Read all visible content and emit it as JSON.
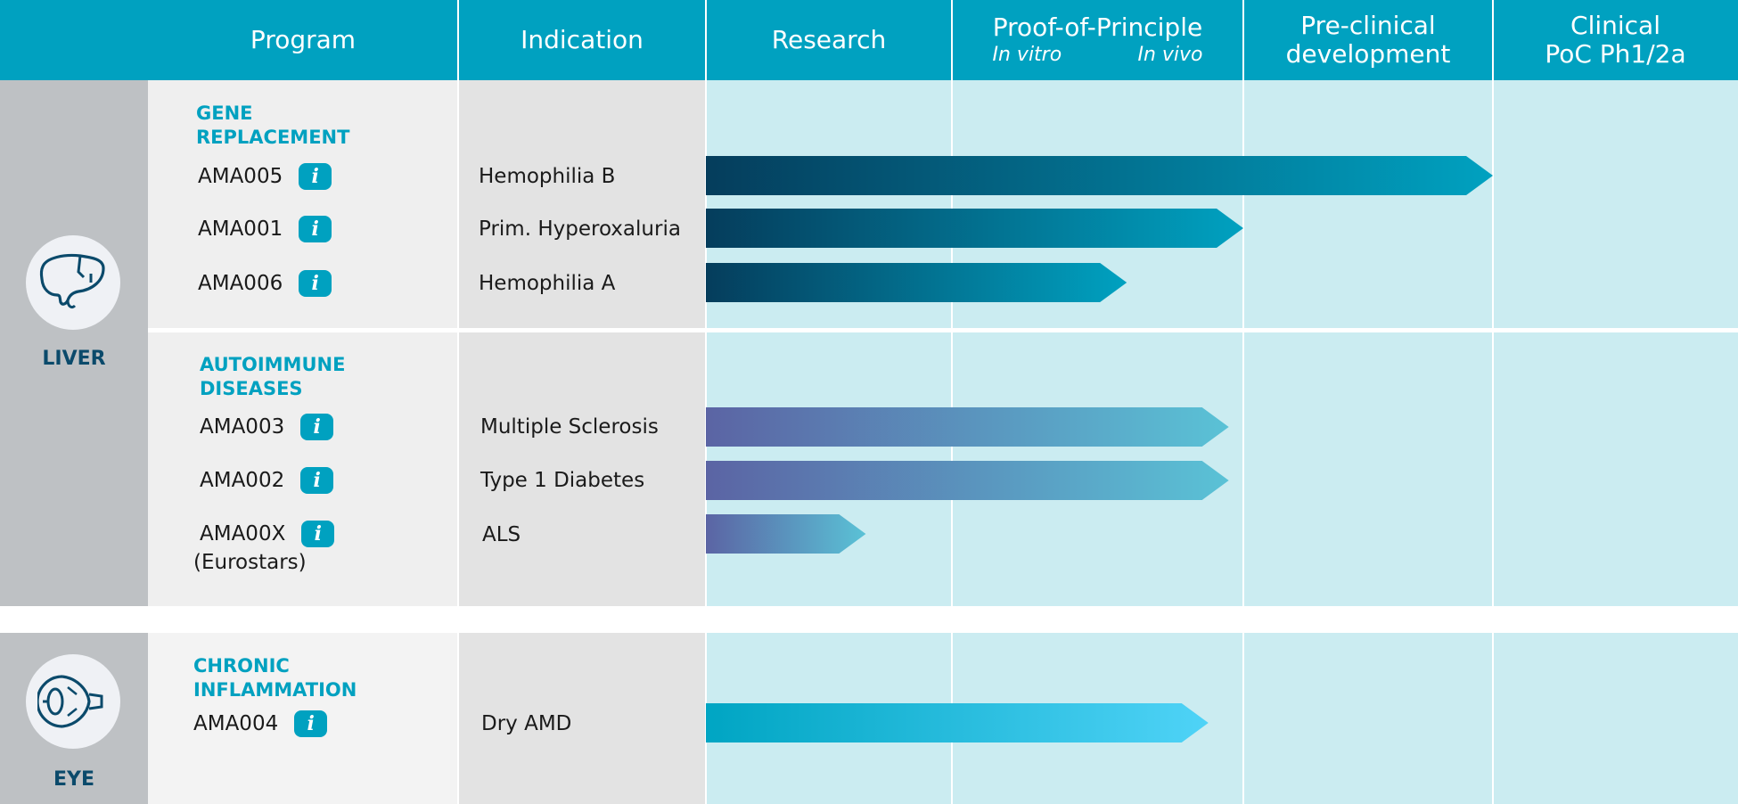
{
  "chart_data": {
    "type": "bar",
    "orientation": "horizontal",
    "chart_kind": "development pipeline",
    "columns": {
      "program": "Program",
      "indication": "Indication",
      "research": "Research",
      "poc": "Proof-of-Principle",
      "poc_sub_a": "In vitro",
      "poc_sub_b": "In vivo",
      "preclinical": [
        "Pre-clinical",
        "development"
      ],
      "clinical": [
        "Clinical",
        "PoC Ph1/2a"
      ]
    },
    "stages": [
      "Research",
      "Proof-of-Principle",
      "Pre-clinical development",
      "Clinical PoC Ph1/2a"
    ],
    "x_units": "stages completed",
    "xlim": [
      0,
      4
    ],
    "organs": {
      "liver": {
        "label": "LIVER",
        "icon": "liver-icon"
      },
      "eye": {
        "label": "EYE",
        "icon": "eye-icon"
      }
    },
    "groups": [
      {
        "category": [
          "GENE",
          "REPLACEMENT"
        ],
        "programs": [
          {
            "name": "AMA005",
            "note": "",
            "indication": "Hemophilia B",
            "progress": 3.0
          },
          {
            "name": "AMA001",
            "note": "",
            "indication": "Prim. Hyperoxaluria",
            "progress": 2.0
          },
          {
            "name": "AMA006",
            "note": "",
            "indication": "Hemophilia A",
            "progress": 1.6
          }
        ]
      },
      {
        "category": [
          "AUTOIMMUNE",
          "DISEASES"
        ],
        "programs": [
          {
            "name": "AMA003",
            "note": "",
            "indication": "Multiple Sclerosis",
            "progress": 1.95
          },
          {
            "name": "AMA002",
            "note": "",
            "indication": "Type 1 Diabetes",
            "progress": 1.95
          },
          {
            "name": "AMA00X",
            "note": "(Eurostars)",
            "indication": "ALS",
            "progress": 0.65
          }
        ]
      },
      {
        "category": [
          "CHRONIC",
          "INFLAMMATION"
        ],
        "programs": [
          {
            "name": "AMA004",
            "note": "",
            "indication": "Dry AMD",
            "progress": 1.88
          }
        ]
      }
    ],
    "info_glyph": "i",
    "colors": {
      "header": "#00a1c0",
      "gene_replacement_gradient": [
        "#053d5c",
        "#00a1c0"
      ],
      "autoimmune_gradient": [
        "#5b64a4",
        "#5ac2d6"
      ],
      "chronic_inflammation_gradient": [
        "#00a5c3",
        "#4fd3f7"
      ],
      "stage_background": "#cbecf1",
      "organ_label": "#0b4a6b",
      "category_label": "#00a1c0"
    }
  }
}
